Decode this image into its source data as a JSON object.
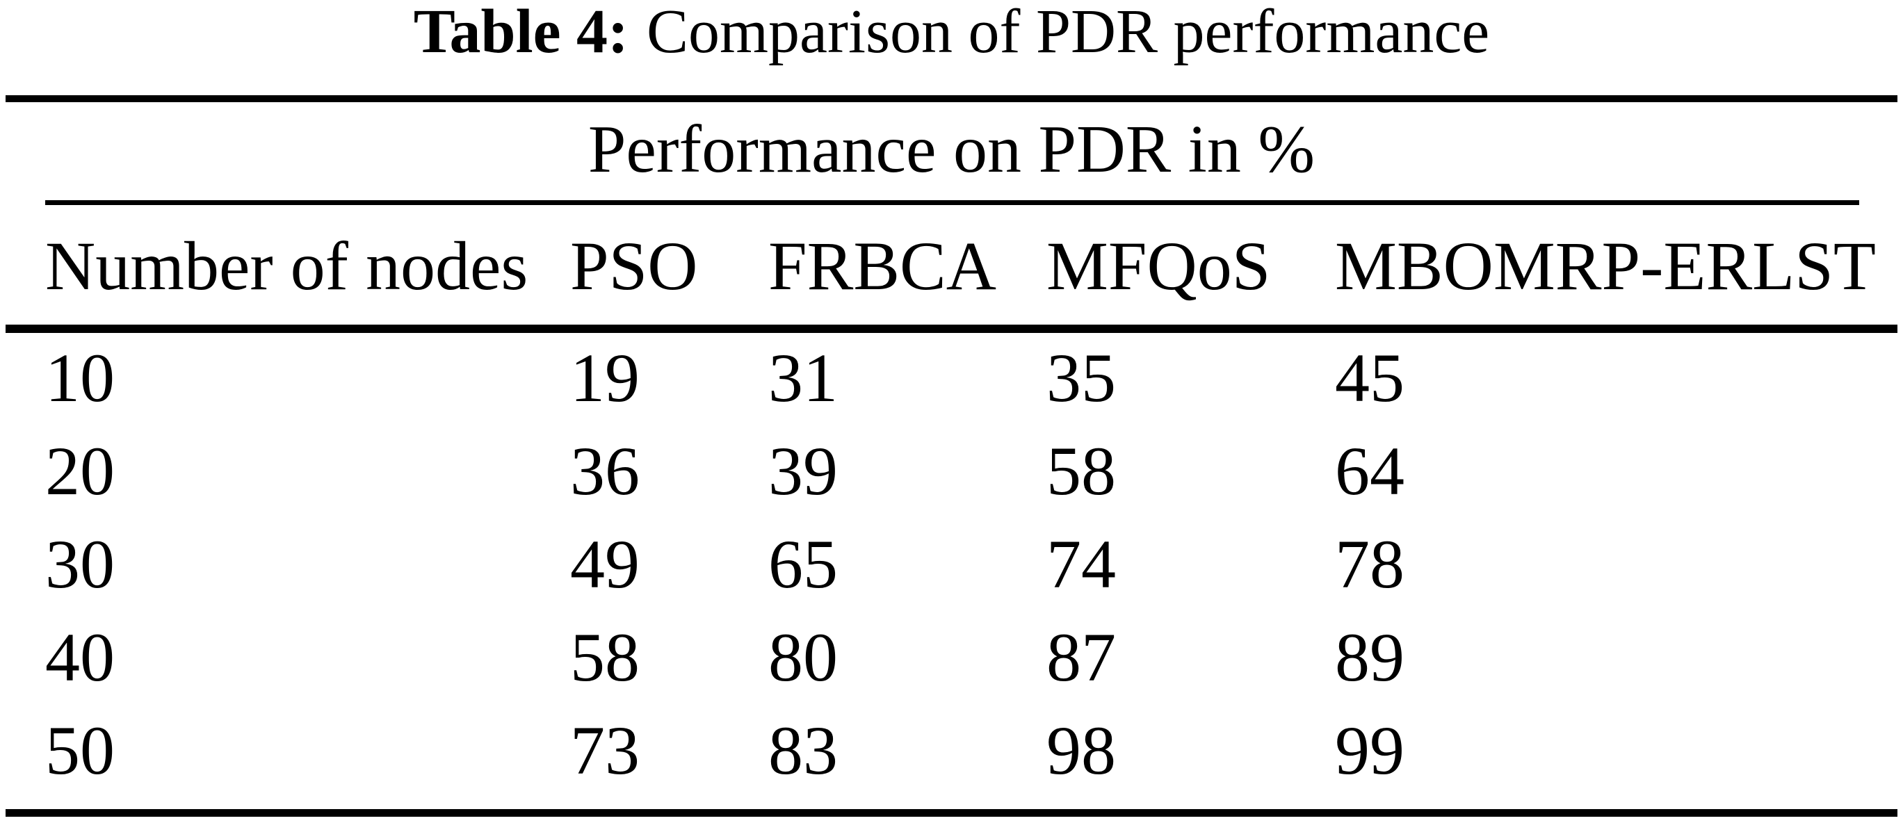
{
  "caption": {
    "label": "Table 4:",
    "text": "Comparison of PDR performance"
  },
  "table": {
    "group_header": "Performance on PDR in %",
    "columns": [
      "Number of nodes",
      "PSO",
      "FRBCA",
      "MFQoS",
      "MBOMRP-ERLST"
    ],
    "rows": [
      [
        "10",
        "19",
        "31",
        "35",
        "45"
      ],
      [
        "20",
        "36",
        "39",
        "58",
        "64"
      ],
      [
        "30",
        "49",
        "65",
        "74",
        "78"
      ],
      [
        "40",
        "58",
        "80",
        "87",
        "89"
      ],
      [
        "50",
        "73",
        "83",
        "98",
        "99"
      ]
    ]
  },
  "chart_data": {
    "type": "table",
    "title": "Table 4: Comparison of PDR performance",
    "group_header": "Performance on PDR in %",
    "columns": [
      "Number of nodes",
      "PSO",
      "FRBCA",
      "MFQoS",
      "MBOMRP-ERLST"
    ],
    "categories": [
      10,
      20,
      30,
      40,
      50
    ],
    "series": [
      {
        "name": "PSO",
        "values": [
          19,
          36,
          49,
          58,
          73
        ]
      },
      {
        "name": "FRBCA",
        "values": [
          31,
          39,
          65,
          80,
          83
        ]
      },
      {
        "name": "MFQoS",
        "values": [
          35,
          58,
          74,
          87,
          98
        ]
      },
      {
        "name": "MBOMRP-ERLST",
        "values": [
          45,
          64,
          78,
          89,
          99
        ]
      }
    ],
    "unit": "%"
  },
  "colors": {
    "background": "#ffffff",
    "text": "#000000",
    "rule": "#000000"
  }
}
